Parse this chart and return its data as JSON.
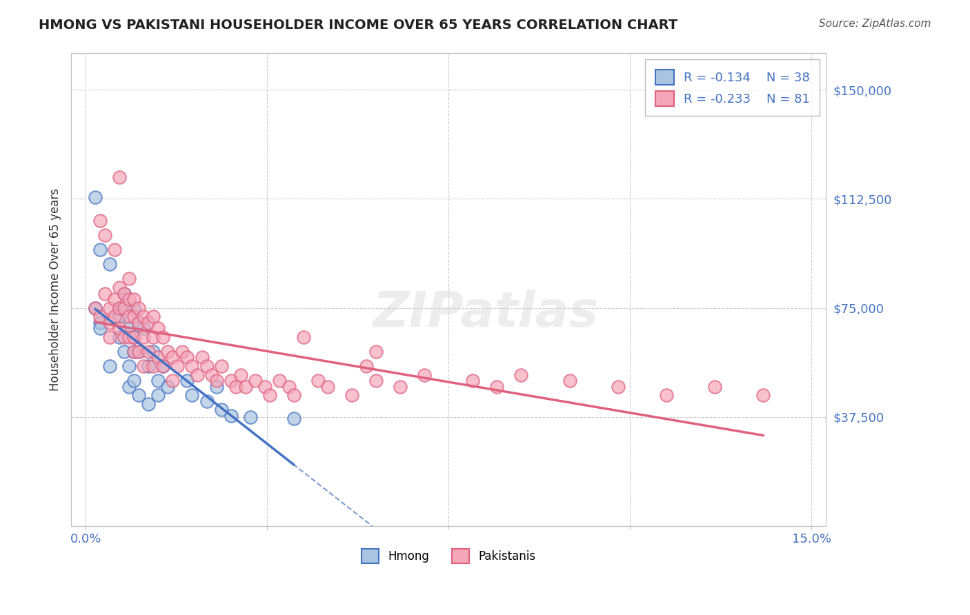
{
  "title": "HMONG VS PAKISTANI HOUSEHOLDER INCOME OVER 65 YEARS CORRELATION CHART",
  "source": "Source: ZipAtlas.com",
  "ylabel": "Householder Income Over 65 years",
  "xlabel": "",
  "xlim": [
    0.0,
    0.15
  ],
  "ylim": [
    0,
    162500
  ],
  "yticks": [
    0,
    37500,
    75000,
    112500,
    150000
  ],
  "ytick_labels": [
    "",
    "$37,500",
    "$75,000",
    "$112,500",
    "$150,000"
  ],
  "xtick_labels": [
    "0.0%",
    "",
    "",
    "",
    "15.0%"
  ],
  "watermark": "ZIPatlas",
  "hmong_R": -0.134,
  "hmong_N": 38,
  "pak_R": -0.233,
  "pak_N": 81,
  "hmong_color": "#a8c4e0",
  "hmong_line_color": "#4472c4",
  "pak_color": "#f4a7b9",
  "pak_line_color": "#e06080",
  "hmong_scatter_x": [
    0.002,
    0.003,
    0.003,
    0.005,
    0.005,
    0.007,
    0.007,
    0.007,
    0.008,
    0.008,
    0.009,
    0.009,
    0.009,
    0.01,
    0.01,
    0.01,
    0.01,
    0.011,
    0.011,
    0.011,
    0.012,
    0.013,
    0.013,
    0.014,
    0.015,
    0.015,
    0.016,
    0.017,
    0.021,
    0.022,
    0.025,
    0.027,
    0.028,
    0.03,
    0.034,
    0.043,
    0.002,
    0.003
  ],
  "hmong_scatter_y": [
    75000,
    70000,
    68000,
    90000,
    55000,
    75000,
    72000,
    65000,
    80000,
    60000,
    68000,
    55000,
    48000,
    75000,
    65000,
    60000,
    50000,
    70000,
    60000,
    45000,
    68000,
    55000,
    42000,
    60000,
    50000,
    45000,
    55000,
    48000,
    50000,
    45000,
    43000,
    48000,
    40000,
    38000,
    37500,
    37000,
    113000,
    95000
  ],
  "pak_scatter_x": [
    0.002,
    0.003,
    0.004,
    0.005,
    0.005,
    0.005,
    0.006,
    0.006,
    0.007,
    0.007,
    0.007,
    0.008,
    0.008,
    0.008,
    0.009,
    0.009,
    0.009,
    0.009,
    0.01,
    0.01,
    0.01,
    0.01,
    0.011,
    0.011,
    0.011,
    0.012,
    0.012,
    0.012,
    0.013,
    0.013,
    0.014,
    0.014,
    0.014,
    0.015,
    0.015,
    0.016,
    0.016,
    0.017,
    0.018,
    0.018,
    0.019,
    0.02,
    0.021,
    0.022,
    0.023,
    0.024,
    0.025,
    0.026,
    0.027,
    0.028,
    0.03,
    0.031,
    0.032,
    0.033,
    0.035,
    0.037,
    0.038,
    0.04,
    0.042,
    0.043,
    0.048,
    0.05,
    0.055,
    0.058,
    0.06,
    0.065,
    0.07,
    0.08,
    0.085,
    0.09,
    0.1,
    0.11,
    0.12,
    0.13,
    0.14,
    0.003,
    0.004,
    0.006,
    0.007,
    0.045,
    0.06
  ],
  "pak_scatter_y": [
    75000,
    72000,
    80000,
    75000,
    70000,
    65000,
    78000,
    72000,
    82000,
    75000,
    68000,
    80000,
    75000,
    65000,
    85000,
    78000,
    72000,
    65000,
    78000,
    72000,
    65000,
    60000,
    75000,
    70000,
    60000,
    72000,
    65000,
    55000,
    70000,
    60000,
    72000,
    65000,
    55000,
    68000,
    58000,
    65000,
    55000,
    60000,
    58000,
    50000,
    55000,
    60000,
    58000,
    55000,
    52000,
    58000,
    55000,
    52000,
    50000,
    55000,
    50000,
    48000,
    52000,
    48000,
    50000,
    48000,
    45000,
    50000,
    48000,
    45000,
    50000,
    48000,
    45000,
    55000,
    50000,
    48000,
    52000,
    50000,
    48000,
    52000,
    50000,
    48000,
    45000,
    48000,
    45000,
    105000,
    100000,
    95000,
    120000,
    65000,
    60000
  ]
}
